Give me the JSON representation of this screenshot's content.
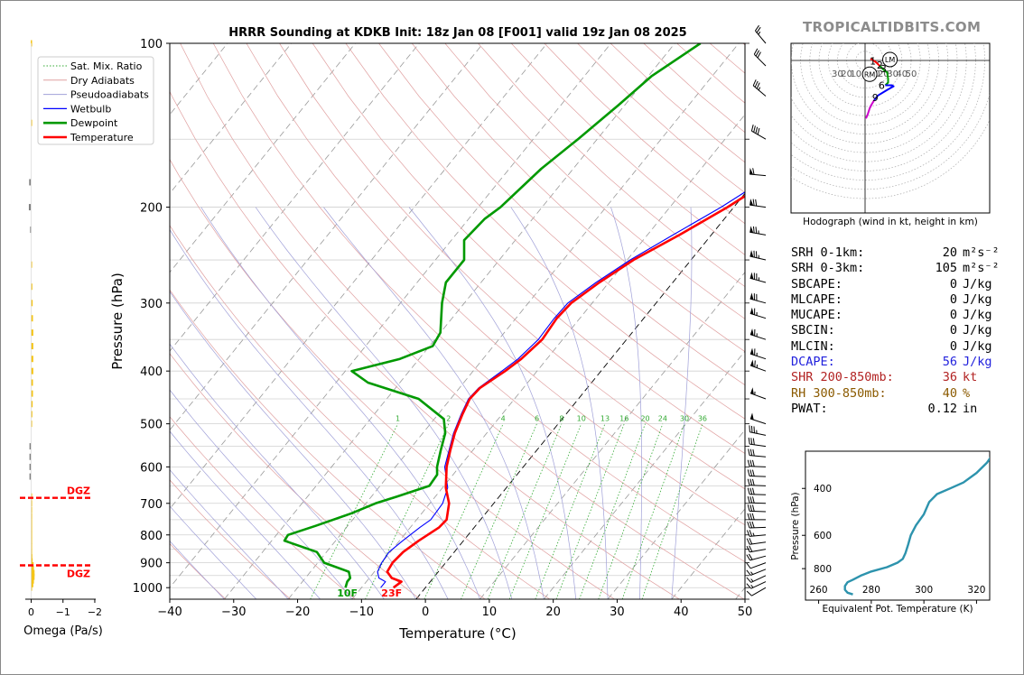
{
  "title": "HRRR Sounding at KDKB Init: 18z Jan 08 [F001] valid 19z Jan 08 2025",
  "logo": "TROPICALTIDBITS.COM",
  "chart_data": [
    {
      "type": "line",
      "name": "skew-t",
      "xlabel": "Temperature (°C)",
      "ylabel": "Pressure (hPa)",
      "xlim": [
        -40,
        50
      ],
      "ylim": [
        1050,
        100
      ],
      "y_scale": "log",
      "x_ticks": [
        -40,
        -30,
        -20,
        -10,
        0,
        10,
        20,
        30,
        40,
        50
      ],
      "y_ticks": [
        100,
        200,
        300,
        400,
        500,
        600,
        700,
        800,
        900,
        1000
      ],
      "mixing_ratio_labels": [
        "1",
        "2",
        "4",
        "6",
        "8",
        "10",
        "13",
        "16",
        "20",
        "24",
        "30",
        "36"
      ],
      "mixing_ratios_gkg": [
        1,
        2,
        4,
        6,
        8,
        10,
        13,
        16,
        20,
        24,
        30,
        36
      ],
      "legend": [
        "Sat. Mix. Ratio",
        "Dry Adiabats",
        "Pseudoadiabats",
        "Wetbulb",
        "Dewpoint",
        "Temperature"
      ],
      "legend_position": "upper-left",
      "surface_dewpoint_label": "10F",
      "surface_temperature_label": "23F",
      "colors": {
        "temperature": "#ff0000",
        "dewpoint": "#009900",
        "wetbulb": "#0000ff",
        "dry_adiabat": "#e0a0a0",
        "moist_adiabat": "#a0a0d8",
        "mixing_ratio": "#33aa33",
        "isotherm_skewed": "#555555"
      },
      "series": [
        {
          "name": "Temperature",
          "points": [
            [
              1000,
              -5
            ],
            [
              975,
              -4.5
            ],
            [
              960,
              -6.5
            ],
            [
              935,
              -8
            ],
            [
              900,
              -8.3
            ],
            [
              860,
              -8
            ],
            [
              820,
              -7
            ],
            [
              775,
              -5.5
            ],
            [
              750,
              -5.3
            ],
            [
              700,
              -7
            ],
            [
              655,
              -9.5
            ],
            [
              600,
              -12
            ],
            [
              560,
              -13.5
            ],
            [
              520,
              -15
            ],
            [
              480,
              -16.2
            ],
            [
              450,
              -17
            ],
            [
              430,
              -16.8
            ],
            [
              400,
              -15
            ],
            [
              380,
              -14
            ],
            [
              350,
              -13.2
            ],
            [
              320,
              -13.6
            ],
            [
              300,
              -13.3
            ],
            [
              275,
              -11.5
            ],
            [
              250,
              -9
            ],
            [
              225,
              -5
            ],
            [
              200,
              -1
            ],
            [
              180,
              2
            ],
            [
              160,
              5.5
            ],
            [
              150,
              7
            ],
            [
              130,
              9
            ],
            [
              115,
              10.5
            ],
            [
              100,
              11.5
            ]
          ]
        },
        {
          "name": "Wetbulb",
          "points": [
            [
              1000,
              -7
            ],
            [
              975,
              -7
            ],
            [
              960,
              -8.5
            ],
            [
              935,
              -9.5
            ],
            [
              900,
              -10
            ],
            [
              860,
              -10.2
            ],
            [
              820,
              -9.5
            ],
            [
              775,
              -8.5
            ],
            [
              750,
              -7.8
            ],
            [
              700,
              -8
            ],
            [
              655,
              -9.2
            ],
            [
              600,
              -12.3
            ],
            [
              560,
              -13.7
            ],
            [
              520,
              -15.2
            ],
            [
              480,
              -16.4
            ],
            [
              450,
              -17.2
            ],
            [
              430,
              -17
            ],
            [
              400,
              -15.5
            ],
            [
              380,
              -14.5
            ],
            [
              350,
              -13.8
            ],
            [
              320,
              -14
            ],
            [
              300,
              -13.8
            ],
            [
              275,
              -12
            ],
            [
              250,
              -9.5
            ],
            [
              225,
              -6
            ],
            [
              200,
              -2
            ],
            [
              180,
              1
            ],
            [
              160,
              4
            ],
            [
              150,
              5.5
            ],
            [
              130,
              8
            ],
            [
              115,
              9.5
            ],
            [
              100,
              11
            ]
          ]
        },
        {
          "name": "Dewpoint",
          "points": [
            [
              1000,
              -12.5
            ],
            [
              975,
              -13
            ],
            [
              960,
              -13
            ],
            [
              935,
              -14
            ],
            [
              900,
              -19
            ],
            [
              860,
              -21.5
            ],
            [
              820,
              -28
            ],
            [
              800,
              -28.2
            ],
            [
              770,
              -25
            ],
            [
              730,
              -21
            ],
            [
              700,
              -18.5
            ],
            [
              680,
              -16
            ],
            [
              650,
              -12.3
            ],
            [
              620,
              -12.5
            ],
            [
              600,
              -13.5
            ],
            [
              560,
              -15
            ],
            [
              520,
              -16.5
            ],
            [
              490,
              -18.5
            ],
            [
              450,
              -25
            ],
            [
              420,
              -35
            ],
            [
              400,
              -39
            ],
            [
              380,
              -33
            ],
            [
              360,
              -29.5
            ],
            [
              340,
              -30
            ],
            [
              300,
              -33.5
            ],
            [
              275,
              -35.5
            ],
            [
              250,
              -35.5
            ],
            [
              230,
              -38
            ],
            [
              210,
              -37.5
            ],
            [
              200,
              -36.5
            ],
            [
              170,
              -35
            ],
            [
              150,
              -33
            ],
            [
              130,
              -31
            ],
            [
              115,
              -29.5
            ],
            [
              100,
              -26
            ]
          ]
        }
      ]
    },
    {
      "type": "bar",
      "name": "omega-profile",
      "xlabel": "Omega (Pa/s)",
      "x_ticks": [
        "0",
        "−1",
        "−2"
      ],
      "xlim": [
        0.3,
        -2.2
      ],
      "dgz_label": "DGZ",
      "dgz_levels_hpa": [
        684,
        910
      ],
      "bars": [
        {
          "p": 1000,
          "v": -0.02
        },
        {
          "p": 985,
          "v": -0.08
        },
        {
          "p": 970,
          "v": -0.1
        },
        {
          "p": 955,
          "v": -0.12
        },
        {
          "p": 940,
          "v": -0.12
        },
        {
          "p": 925,
          "v": -0.1
        },
        {
          "p": 910,
          "v": -0.09
        },
        {
          "p": 895,
          "v": -0.06
        },
        {
          "p": 880,
          "v": -0.05
        },
        {
          "p": 860,
          "v": -0.04
        },
        {
          "p": 840,
          "v": -0.04
        },
        {
          "p": 820,
          "v": -0.03
        },
        {
          "p": 800,
          "v": -0.03
        },
        {
          "p": 780,
          "v": -0.02
        },
        {
          "p": 760,
          "v": -0.02
        },
        {
          "p": 740,
          "v": -0.02
        },
        {
          "p": 720,
          "v": -0.02
        },
        {
          "p": 700,
          "v": -0.02
        },
        {
          "p": 680,
          "v": -0.01
        },
        {
          "p": 625,
          "v": 0.04
        },
        {
          "p": 600,
          "v": 0.04
        },
        {
          "p": 575,
          "v": 0.04
        },
        {
          "p": 550,
          "v": 0.04
        },
        {
          "p": 500,
          "v": -0.02
        },
        {
          "p": 480,
          "v": -0.05
        },
        {
          "p": 460,
          "v": -0.06
        },
        {
          "p": 440,
          "v": -0.07
        },
        {
          "p": 420,
          "v": -0.07
        },
        {
          "p": 400,
          "v": -0.08
        },
        {
          "p": 380,
          "v": -0.08
        },
        {
          "p": 360,
          "v": -0.08
        },
        {
          "p": 340,
          "v": -0.08
        },
        {
          "p": 320,
          "v": -0.07
        },
        {
          "p": 300,
          "v": -0.06
        },
        {
          "p": 280,
          "v": -0.05
        },
        {
          "p": 255,
          "v": -0.02
        },
        {
          "p": 220,
          "v": 0.02
        },
        {
          "p": 200,
          "v": 0.06
        },
        {
          "p": 180,
          "v": 0.05
        },
        {
          "p": 140,
          "v": -0.02
        },
        {
          "p": 100,
          "v": -0.01
        }
      ]
    },
    {
      "type": "line",
      "name": "hodograph",
      "caption": "Hodograph (wind in kt, height in km)",
      "ring_labels": [
        "30",
        "20",
        "10",
        "10",
        "20",
        "30",
        "40",
        "50"
      ],
      "height_labels": [
        "1",
        "2",
        "3",
        "6",
        "9"
      ],
      "storm_motion_labels": [
        "RM",
        "LM"
      ],
      "segments": [
        {
          "color": "#ff0000",
          "points": [
            [
              6,
              2
            ],
            [
              12,
              -2
            ],
            [
              16,
              -6
            ]
          ]
        },
        {
          "color": "#009900",
          "points": [
            [
              16,
              -6
            ],
            [
              21,
              -11
            ],
            [
              24,
              -13
            ],
            [
              25,
              -20
            ],
            [
              25,
              -24
            ],
            [
              22,
              -27
            ]
          ]
        },
        {
          "color": "#0000ff",
          "points": [
            [
              22,
              -27
            ],
            [
              29,
              -27
            ],
            [
              31,
              -28
            ],
            [
              24,
              -32
            ],
            [
              14,
              -38
            ],
            [
              10,
              -43
            ]
          ]
        },
        {
          "color": "#cc00cc",
          "points": [
            [
              10,
              -43
            ],
            [
              7,
              -48
            ],
            [
              5,
              -52
            ],
            [
              3,
              -58
            ],
            [
              1,
              -63
            ]
          ]
        }
      ],
      "height_points": [
        {
          "label": "1",
          "u": 8.5,
          "v": -0.5
        },
        {
          "label": "2",
          "u": 16,
          "v": -5
        },
        {
          "label": "3",
          "u": 20,
          "v": -9
        },
        {
          "label": "6",
          "u": 18,
          "v": -27
        },
        {
          "label": "9",
          "u": 11,
          "v": -40
        }
      ],
      "storm_motion": [
        {
          "label": "RM",
          "u": 5,
          "v": -15
        },
        {
          "label": "LM",
          "u": 27,
          "v": 1
        }
      ]
    },
    {
      "type": "line",
      "name": "theta-e-profile",
      "xlabel": "Equivalent Pot. Temperature (K)",
      "ylabel": "Pressure (hPa)",
      "xlim": [
        255,
        325
      ],
      "ylim": [
        1050,
        290
      ],
      "x_ticks": [
        260,
        280,
        300,
        320
      ],
      "y_ticks": [
        400,
        600,
        800
      ],
      "color": "#2d93ad",
      "points": [
        [
          1000,
          273
        ],
        [
          985,
          271
        ],
        [
          960,
          270
        ],
        [
          930,
          270
        ],
        [
          900,
          271
        ],
        [
          880,
          273
        ],
        [
          850,
          276
        ],
        [
          820,
          280
        ],
        [
          790,
          286
        ],
        [
          760,
          290
        ],
        [
          735,
          292
        ],
        [
          700,
          293
        ],
        [
          650,
          294
        ],
        [
          600,
          295
        ],
        [
          550,
          297
        ],
        [
          500,
          300
        ],
        [
          450,
          302
        ],
        [
          420,
          305
        ],
        [
          400,
          310
        ],
        [
          380,
          315
        ],
        [
          350,
          320
        ],
        [
          320,
          324
        ],
        [
          290,
          327
        ]
      ]
    }
  ],
  "wind_barbs": [
    {
      "p": 1000,
      "dir": 240,
      "spd": 12
    },
    {
      "p": 975,
      "dir": 245,
      "spd": 15
    },
    {
      "p": 950,
      "dir": 245,
      "spd": 15
    },
    {
      "p": 925,
      "dir": 248,
      "spd": 14
    },
    {
      "p": 900,
      "dir": 250,
      "spd": 12
    },
    {
      "p": 875,
      "dir": 255,
      "spd": 18
    },
    {
      "p": 850,
      "dir": 260,
      "spd": 18
    },
    {
      "p": 825,
      "dir": 262,
      "spd": 22
    },
    {
      "p": 800,
      "dir": 265,
      "spd": 25
    },
    {
      "p": 775,
      "dir": 268,
      "spd": 28
    },
    {
      "p": 750,
      "dir": 270,
      "spd": 30
    },
    {
      "p": 725,
      "dir": 272,
      "spd": 30
    },
    {
      "p": 700,
      "dir": 272,
      "spd": 30
    },
    {
      "p": 675,
      "dir": 272,
      "spd": 30
    },
    {
      "p": 650,
      "dir": 272,
      "spd": 28
    },
    {
      "p": 625,
      "dir": 272,
      "spd": 28
    },
    {
      "p": 600,
      "dir": 272,
      "spd": 28
    },
    {
      "p": 575,
      "dir": 275,
      "spd": 30
    },
    {
      "p": 550,
      "dir": 278,
      "spd": 30
    },
    {
      "p": 525,
      "dir": 282,
      "spd": 35
    },
    {
      "p": 500,
      "dir": 288,
      "spd": 50
    },
    {
      "p": 450,
      "dir": 290,
      "spd": 55
    },
    {
      "p": 400,
      "dir": 290,
      "spd": 65
    },
    {
      "p": 380,
      "dir": 288,
      "spd": 65
    },
    {
      "p": 350,
      "dir": 288,
      "spd": 65
    },
    {
      "p": 320,
      "dir": 287,
      "spd": 65
    },
    {
      "p": 300,
      "dir": 285,
      "spd": 70
    },
    {
      "p": 275,
      "dir": 285,
      "spd": 75
    },
    {
      "p": 250,
      "dir": 283,
      "spd": 75
    },
    {
      "p": 225,
      "dir": 280,
      "spd": 75
    },
    {
      "p": 200,
      "dir": 278,
      "spd": 70
    },
    {
      "p": 175,
      "dir": 275,
      "spd": 60
    },
    {
      "p": 150,
      "dir": 300,
      "spd": 40
    },
    {
      "p": 125,
      "dir": 310,
      "spd": 35
    },
    {
      "p": 110,
      "dir": 315,
      "spd": 30
    },
    {
      "p": 100,
      "dir": 320,
      "spd": 25
    }
  ],
  "indices": [
    {
      "label": "SRH 0-1km:",
      "value": "20",
      "unit": "m²s⁻²",
      "color": "#000000"
    },
    {
      "label": "SRH 0-3km:",
      "value": "105",
      "unit": "m²s⁻²",
      "color": "#000000"
    },
    {
      "label": "SBCAPE:",
      "value": "0",
      "unit": "J/kg",
      "color": "#000000"
    },
    {
      "label": "MLCAPE:",
      "value": "0",
      "unit": "J/kg",
      "color": "#000000"
    },
    {
      "label": "MUCAPE:",
      "value": "0",
      "unit": "J/kg",
      "color": "#000000"
    },
    {
      "label": "SBCIN:",
      "value": "0",
      "unit": "J/kg",
      "color": "#000000"
    },
    {
      "label": "MLCIN:",
      "value": "0",
      "unit": "J/kg",
      "color": "#000000"
    },
    {
      "label": "DCAPE:",
      "value": "56",
      "unit": "J/kg",
      "color": "#2222dd"
    },
    {
      "label": "SHR 200-850mb:",
      "value": "36",
      "unit": "kt",
      "color": "#b22222"
    },
    {
      "label": "RH 300-850mb:",
      "value": "40",
      "unit": "%",
      "color": "#8b5a00"
    },
    {
      "label": "PWAT:",
      "value": "0.12",
      "unit": "in",
      "color": "#000000"
    }
  ]
}
